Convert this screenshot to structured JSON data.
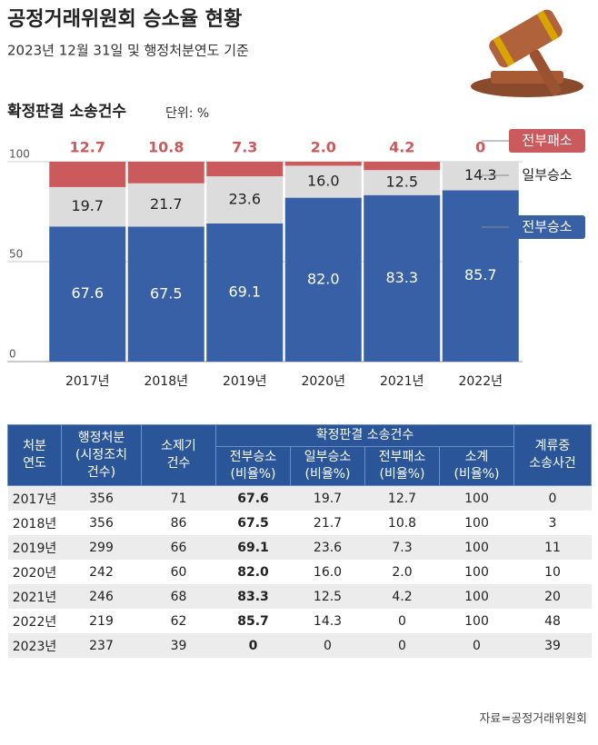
{
  "header": {
    "title": "공정거래위원회 승소율 현황",
    "subtitle": "2023년 12월 31일 및 행정처분연도 기준"
  },
  "chart_data": {
    "type": "stacked_bar",
    "title": "확정판결 소송건수",
    "unit": "단위: %",
    "categories": [
      "2017년",
      "2018년",
      "2019년",
      "2020년",
      "2021년",
      "2022년"
    ],
    "series": [
      {
        "name": "전부승소",
        "color": "#3760a7",
        "values": [
          67.6,
          67.5,
          69.1,
          82.0,
          83.3,
          85.7
        ],
        "value_labels": [
          "67.6",
          "67.5",
          "69.1",
          "82.0",
          "83.3",
          "85.7"
        ]
      },
      {
        "name": "일부승소",
        "color": "#dcdcdc",
        "values": [
          19.7,
          21.7,
          23.6,
          16.0,
          12.5,
          14.3
        ],
        "value_labels": [
          "19.7",
          "21.7",
          "23.6",
          "16.0",
          "12.5",
          "14.3"
        ]
      },
      {
        "name": "전부패소",
        "color": "#cb5a5c",
        "values": [
          12.7,
          10.8,
          7.3,
          2.0,
          4.2,
          0
        ],
        "value_labels": [
          "12.7",
          "10.8",
          "7.3",
          "2.0",
          "4.2",
          "0"
        ]
      }
    ],
    "ylim": [
      0,
      100
    ],
    "yticks": [
      0,
      50,
      100
    ],
    "grid": true
  },
  "table": {
    "header_top": [
      "처분\n연도",
      "행정처분\n(시정조치\n건수)",
      "소제기\n건수",
      "확정판결 소송건수",
      "계류중\n소송사건"
    ],
    "header_sub": [
      "전부승소\n(비율%)",
      "일부승소\n(비율%)",
      "전부패소\n(비율%)",
      "소계\n(비율%)"
    ],
    "rows": [
      [
        "2017년",
        "356",
        "71",
        "67.6",
        "19.7",
        "12.7",
        "100",
        "0"
      ],
      [
        "2018년",
        "356",
        "86",
        "67.5",
        "21.7",
        "10.8",
        "100",
        "3"
      ],
      [
        "2019년",
        "299",
        "66",
        "69.1",
        "23.6",
        "7.3",
        "100",
        "11"
      ],
      [
        "2020년",
        "242",
        "60",
        "82.0",
        "16.0",
        "2.0",
        "100",
        "10"
      ],
      [
        "2021년",
        "246",
        "68",
        "83.3",
        "12.5",
        "4.2",
        "100",
        "20"
      ],
      [
        "2022년",
        "219",
        "62",
        "85.7",
        "14.3",
        "0",
        "100",
        "48"
      ],
      [
        "2023년",
        "237",
        "39",
        "0",
        "0",
        "0",
        "0",
        "39"
      ]
    ]
  },
  "source": "자료=공정거래위원회"
}
